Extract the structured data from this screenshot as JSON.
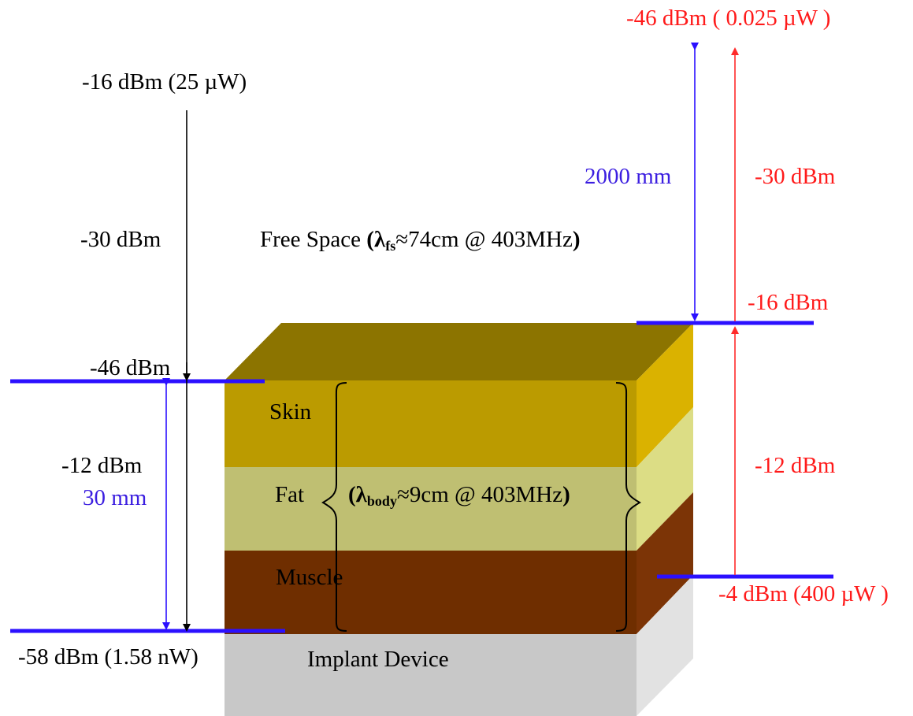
{
  "colors": {
    "top_face": "#8c7400",
    "skin_front": "#bb9b00",
    "skin_side": "#dab200",
    "fat_front": "#bfbf72",
    "fat_side": "#dcdd85",
    "muscle_front": "#6f2e00",
    "muscle_side": "#7c3406",
    "implant_front": "#c8c8c8",
    "implant_side": "#e2e2e2",
    "level_line": "#2b10ff",
    "red_arrow": "#ff2a2a",
    "blue_arrow": "#2b10ff"
  },
  "left": {
    "source_power": "-16 dBm (25 µW)",
    "free_space_loss": "-30 dBm",
    "skin_level": "-46 dBm",
    "body_loss": "-12 dBm",
    "body_distance": "30 mm",
    "implant_power": "-58 dBm (1.58 nW)"
  },
  "right": {
    "top_power": "-46 dBm ( 0.025 µW )",
    "free_space_distance": "2000 mm",
    "free_space_loss": "-30 dBm",
    "skin_level": "-16 dBm",
    "body_loss": "-12 dBm",
    "implant_power": "-4 dBm (400 µW )"
  },
  "center": {
    "free_space_prefix": "Free Space ",
    "free_space_lambda": "λ",
    "free_space_sub": "fs",
    "free_space_rest": "≈74cm @ 403MHz",
    "body_lambda": "λ",
    "body_sub": "body",
    "body_rest": "≈9cm @ 403MHz",
    "paren_open": "(",
    "paren_close": ")"
  },
  "layers": {
    "skin": "Skin",
    "fat": "Fat",
    "muscle": "Muscle",
    "implant": "Implant Device"
  }
}
